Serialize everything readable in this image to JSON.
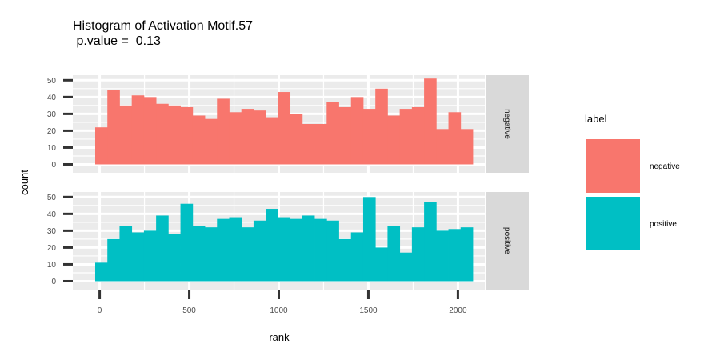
{
  "chart_data": {
    "type": "bar",
    "subtype": "histogram-faceted",
    "title": "Histogram of Activation Motif.57",
    "subtitle": " p.value =  0.13",
    "xlabel": "rank",
    "ylabel": "count",
    "xlim": [
      -150,
      2150
    ],
    "ylim": [
      -5,
      53
    ],
    "x_ticks": [
      0,
      500,
      1000,
      1500,
      2000
    ],
    "y_ticks": [
      0,
      10,
      20,
      30,
      40,
      50
    ],
    "bin_start": -25,
    "bin_width": 68,
    "grid": true,
    "legend": {
      "title": "label",
      "position": "right"
    },
    "series": [
      {
        "name": "negative",
        "color": "#F8766D",
        "values": [
          22,
          44,
          35,
          41,
          40,
          36,
          35,
          34,
          29,
          27,
          39,
          31,
          33,
          32,
          28,
          43,
          30,
          24,
          24,
          37,
          34,
          40,
          33,
          45,
          29,
          33,
          34,
          51,
          21,
          31,
          21
        ]
      },
      {
        "name": "positive",
        "color": "#00BFC4",
        "values": [
          11,
          25,
          33,
          29,
          30,
          39,
          28,
          46,
          33,
          32,
          37,
          38,
          32,
          36,
          43,
          38,
          37,
          39,
          37,
          36,
          25,
          29,
          50,
          20,
          33,
          17,
          32,
          47,
          30,
          31,
          32
        ]
      }
    ]
  }
}
